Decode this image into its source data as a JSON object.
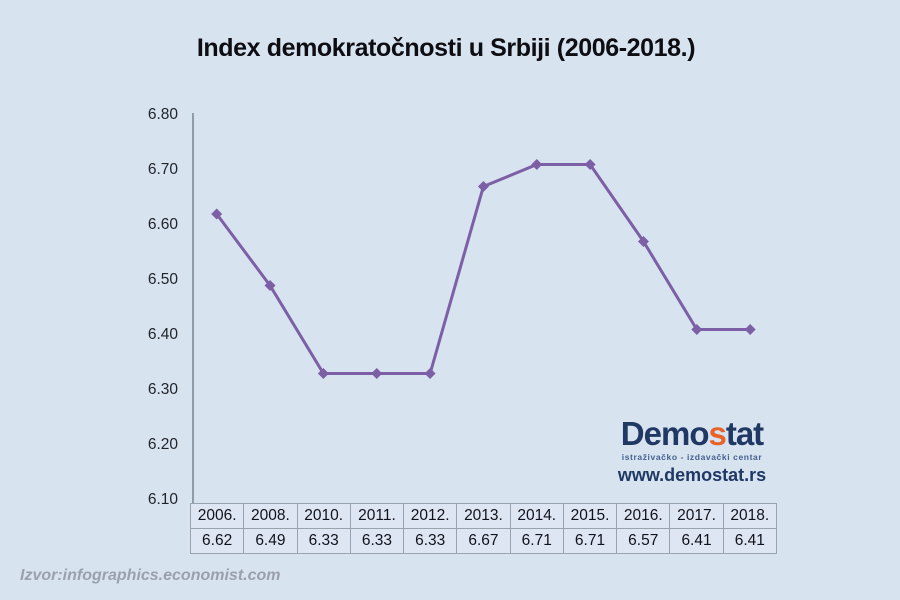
{
  "title": "Index demokratočnosti u Srbiji (2006-2018.)",
  "source": "Izvor:infographics.economist.com",
  "logo": {
    "part1": "Demo",
    "accent": "s",
    "part2": "tat",
    "tagline": "istraživačko - izdavački  centar",
    "url": "www.demostat.rs"
  },
  "colors": {
    "background": "#D8E3F0",
    "line": "#7C5FA5",
    "axis": "#8E9BA8",
    "table_border": "#99A3AE",
    "table_bg": "#DDE6F2",
    "logo_navy": "#1F3864",
    "logo_orange": "#E8622C",
    "source_gray": "#99A1AC"
  },
  "chart_data": {
    "type": "line",
    "title": "Index demokratočnosti u Srbiji (2006-2018.)",
    "categories": [
      "2006.",
      "2008.",
      "2010.",
      "2011.",
      "2012.",
      "2013.",
      "2014.",
      "2015.",
      "2016.",
      "2017.",
      "2018."
    ],
    "series": [
      {
        "name": "Index demokratočnosti",
        "values": [
          6.62,
          6.49,
          6.33,
          6.33,
          6.33,
          6.67,
          6.71,
          6.71,
          6.57,
          6.41,
          6.41
        ]
      }
    ],
    "y_ticks": [
      "6.80",
      "6.70",
      "6.60",
      "6.50",
      "6.40",
      "6.30",
      "6.20",
      "6.10"
    ],
    "ylim": [
      6.1,
      6.8
    ],
    "xlabel": "",
    "ylabel": "",
    "grid": false,
    "legend": "none",
    "marker": "diamond",
    "line_color": "#7C5FA5",
    "value_labels_position": "table-below"
  }
}
